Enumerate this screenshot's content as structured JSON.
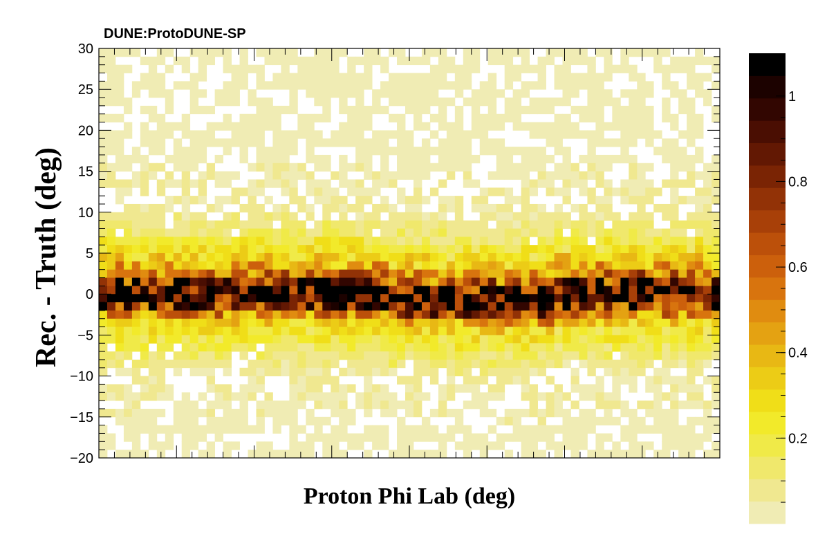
{
  "chart_data": {
    "type": "heatmap",
    "title": "DUNE:ProtoDUNE-SP",
    "xlabel": "Proton Phi Lab (deg)",
    "ylabel": "Rec. - Truth (deg)",
    "ylim": [
      -20,
      30
    ],
    "y_ticks": [
      "30",
      "25",
      "20",
      "15",
      "10",
      "5",
      "0",
      "−5",
      "−10",
      "−15",
      "−20"
    ],
    "y_tick_values": [
      30,
      25,
      20,
      15,
      10,
      5,
      0,
      -5,
      -10,
      -15,
      -20
    ],
    "x_bins": 75,
    "y_bin_width": 1,
    "y_bin_centers": [
      -0.5,
      0.5,
      1.5,
      2.5,
      3.5,
      4.5,
      5.5,
      6.5,
      7.5,
      8.5,
      9.5,
      10.5,
      11.5,
      12.5,
      13.5,
      14.5,
      15.5,
      16.5,
      17.5,
      18.5,
      19.5,
      20.5,
      21.5,
      22.5,
      23.5,
      24.5,
      25.5,
      26.5,
      27.5,
      28.5,
      29.5,
      -1.5,
      -2.5,
      -3.5,
      -4.5,
      -5.5,
      -6.5,
      -7.5,
      -8.5,
      -9.5,
      -10.5,
      -11.5,
      -12.5,
      -13.5,
      -14.5,
      -15.5,
      -16.5,
      -17.5,
      -18.5,
      -19.5
    ],
    "profile": {
      "y_offset_deg": [
        -0.5,
        0.5,
        1.5,
        2.5,
        3.5,
        4.5,
        5.5,
        6.5,
        7.5,
        8.5,
        9.5,
        10.5,
        12.5,
        15.5,
        18.5,
        22.5,
        27.5,
        -1.5,
        -2.5,
        -3.5,
        -4.5,
        -5.5,
        -6.5,
        -7.5,
        -8.5,
        -9.5,
        -11.5,
        -14.5,
        -17.5,
        -19.5
      ],
      "typical_value": [
        1.0,
        1.05,
        0.85,
        0.55,
        0.42,
        0.3,
        0.25,
        0.2,
        0.14,
        0.11,
        0.08,
        0.06,
        0.05,
        0.04,
        0.03,
        0.03,
        0.03,
        0.8,
        0.5,
        0.32,
        0.24,
        0.2,
        0.16,
        0.12,
        0.08,
        0.06,
        0.05,
        0.04,
        0.03,
        0.03
      ]
    },
    "colorbar": {
      "range": [
        0,
        1.1
      ],
      "ticks": [
        "0.2",
        "0.4",
        "0.6",
        "0.8",
        "1"
      ],
      "tick_values": [
        0.2,
        0.4,
        0.6,
        0.8,
        1.0
      ],
      "levels": 20,
      "colors": [
        "#f0ecb4",
        "#f0e890",
        "#f0e86c",
        "#f0ea48",
        "#f2ea2a",
        "#f0de18",
        "#eccc16",
        "#e8b814",
        "#e4a212",
        "#e08c10",
        "#d8740e",
        "#cc600c",
        "#bc500a",
        "#a84008",
        "#923206",
        "#7a2404",
        "#621803",
        "#4a0e02",
        "#320601",
        "#1c0200",
        "#000000"
      ]
    },
    "grid": false,
    "legend": "none"
  }
}
